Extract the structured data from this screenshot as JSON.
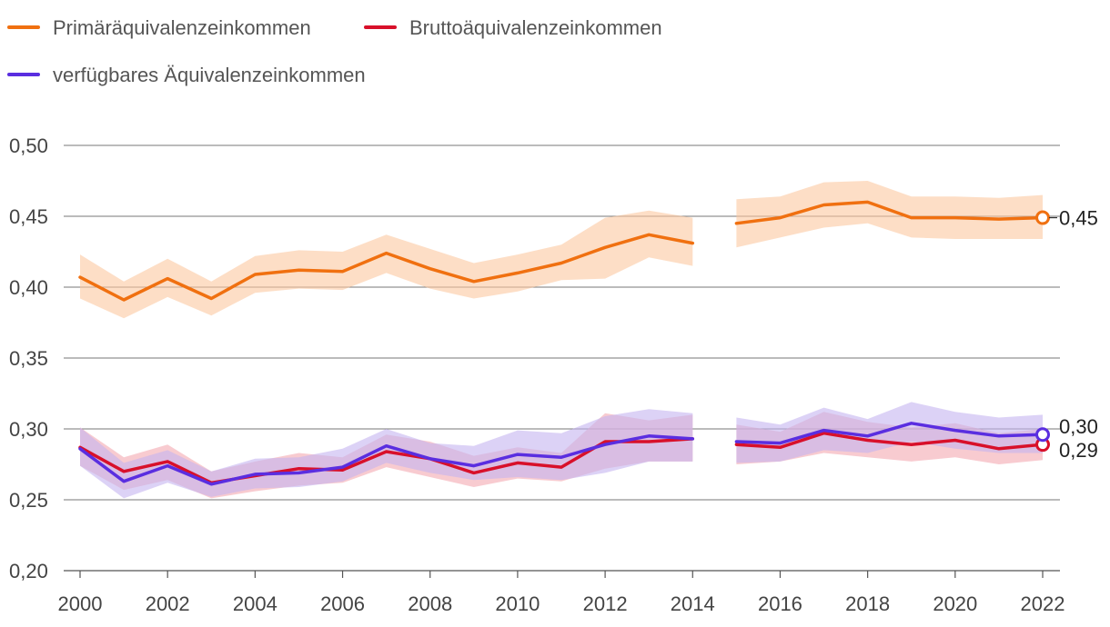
{
  "chart_data": {
    "type": "line",
    "title": "",
    "xlabel": "",
    "ylabel": "",
    "ylim": [
      0.2,
      0.5
    ],
    "yticks": [
      0.2,
      0.25,
      0.3,
      0.35,
      0.4,
      0.45,
      0.5
    ],
    "ytick_labels": [
      "0,20",
      "0,25",
      "0,30",
      "0,35",
      "0,40",
      "0,45",
      "0,50"
    ],
    "xlim": [
      2000,
      2022
    ],
    "xticks": [
      2000,
      2002,
      2004,
      2006,
      2008,
      2010,
      2012,
      2014,
      2016,
      2018,
      2020,
      2022
    ],
    "xtick_labels": [
      "2000",
      "2002",
      "2004",
      "2006",
      "2008",
      "2010",
      "2012",
      "2014",
      "2016",
      "2018",
      "2020",
      "2022"
    ],
    "grid": true,
    "legend_position": "top-left",
    "x": [
      2000,
      2001,
      2002,
      2003,
      2004,
      2005,
      2006,
      2007,
      2008,
      2009,
      2010,
      2011,
      2012,
      2013,
      2014,
      2015,
      2016,
      2017,
      2018,
      2019,
      2020,
      2021,
      2022
    ],
    "series": [
      {
        "key": "primaer",
        "name": "Primäräquivalenzeinkommen",
        "color": "#f07010",
        "band_color": "#fcc8a0",
        "values": [
          0.407,
          0.391,
          0.406,
          0.392,
          0.409,
          0.412,
          0.411,
          0.424,
          0.413,
          0.404,
          0.41,
          0.417,
          0.428,
          0.437,
          0.431,
          0.445,
          0.449,
          0.458,
          0.46,
          0.449,
          0.449,
          0.448,
          0.449
        ],
        "lower": [
          0.392,
          0.378,
          0.393,
          0.38,
          0.396,
          0.399,
          0.398,
          0.41,
          0.399,
          0.392,
          0.397,
          0.405,
          0.406,
          0.421,
          0.415,
          0.428,
          0.435,
          0.442,
          0.445,
          0.435,
          0.434,
          0.434,
          0.434
        ],
        "upper": [
          0.423,
          0.404,
          0.42,
          0.404,
          0.422,
          0.426,
          0.425,
          0.437,
          0.427,
          0.417,
          0.423,
          0.43,
          0.449,
          0.454,
          0.449,
          0.462,
          0.464,
          0.474,
          0.475,
          0.464,
          0.464,
          0.463,
          0.465
        ],
        "end_label": "0,45"
      },
      {
        "key": "brutto",
        "name": "Bruttoäquivalenzeinkommen",
        "color": "#d8102a",
        "band_color": "#f4a8b0",
        "values": [
          0.287,
          0.27,
          0.277,
          0.262,
          0.267,
          0.272,
          0.271,
          0.284,
          0.279,
          0.269,
          0.276,
          0.273,
          0.291,
          0.291,
          0.293,
          0.289,
          0.287,
          0.297,
          0.292,
          0.289,
          0.292,
          0.286,
          0.289
        ],
        "lower": [
          0.274,
          0.257,
          0.264,
          0.251,
          0.256,
          0.26,
          0.262,
          0.273,
          0.266,
          0.259,
          0.265,
          0.263,
          0.272,
          0.277,
          0.277,
          0.275,
          0.277,
          0.283,
          0.28,
          0.277,
          0.28,
          0.275,
          0.278
        ],
        "upper": [
          0.301,
          0.28,
          0.289,
          0.27,
          0.277,
          0.283,
          0.28,
          0.296,
          0.291,
          0.281,
          0.287,
          0.283,
          0.311,
          0.306,
          0.31,
          0.303,
          0.298,
          0.312,
          0.305,
          0.301,
          0.304,
          0.297,
          0.3
        ],
        "end_label": "0,29"
      },
      {
        "key": "verfuegbar",
        "name": "verfügbares Äquivalenzeinkommen",
        "color": "#5a2ee0",
        "band_color": "#c4b4f0",
        "values": [
          0.286,
          0.263,
          0.274,
          0.261,
          0.268,
          0.269,
          0.273,
          0.288,
          0.279,
          0.274,
          0.282,
          0.28,
          0.289,
          0.295,
          0.293,
          0.291,
          0.29,
          0.299,
          0.295,
          0.304,
          0.299,
          0.295,
          0.296
        ],
        "lower": [
          0.274,
          0.251,
          0.262,
          0.252,
          0.258,
          0.259,
          0.263,
          0.276,
          0.269,
          0.264,
          0.266,
          0.264,
          0.269,
          0.277,
          0.277,
          0.276,
          0.277,
          0.285,
          0.283,
          0.291,
          0.286,
          0.283,
          0.283
        ],
        "upper": [
          0.301,
          0.276,
          0.285,
          0.27,
          0.279,
          0.28,
          0.286,
          0.3,
          0.29,
          0.288,
          0.299,
          0.297,
          0.309,
          0.314,
          0.311,
          0.308,
          0.303,
          0.315,
          0.307,
          0.319,
          0.312,
          0.308,
          0.31
        ],
        "end_label": "0,30"
      }
    ]
  }
}
